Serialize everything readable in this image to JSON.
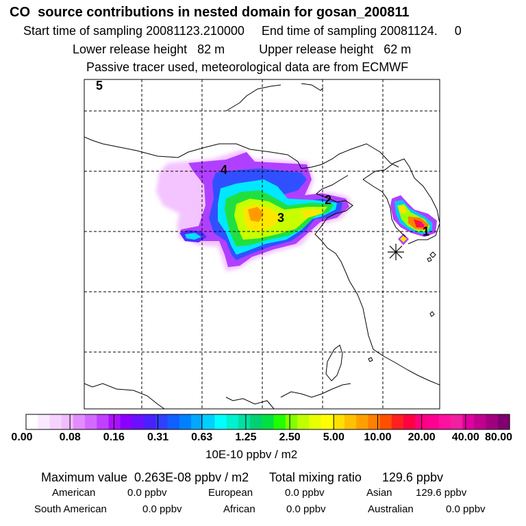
{
  "header": {
    "title": "CO  source contributions in nested domain for gosan_200811",
    "sampling": "Start time of sampling 20081123.210000     End time of sampling 20081124.     0",
    "release": "Lower release height   82 m          Upper release height   62 m",
    "tracer": "Passive tracer used, meteorological data are from ECMWF"
  },
  "map": {
    "corner_label": "5",
    "source_labels": [
      "1",
      "2",
      "3",
      "4"
    ],
    "receptor_marker": "asterisk"
  },
  "colorbar": {
    "tick_labels": [
      "0.00",
      "0.08",
      "0.16",
      "0.31",
      "0.63",
      "1.25",
      "2.50",
      "5.00",
      "10.00",
      "20.00",
      "40.00",
      "80.00"
    ],
    "unit": "10E-10 ppbv / m2",
    "colors": [
      "#ffffff",
      "#fbe9ff",
      "#f5d3ff",
      "#eebcff",
      "#e28cff",
      "#d36aff",
      "#c040ff",
      "#aa10ff",
      "#8a00ff",
      "#6a10ff",
      "#4a20ff",
      "#3040ff",
      "#1060ff",
      "#0080ff",
      "#00a8ff",
      "#00d0ff",
      "#00ffff",
      "#00f0d0",
      "#00e0a0",
      "#00d070",
      "#00e040",
      "#20ff00",
      "#80ff00",
      "#c0ff00",
      "#e8ff00",
      "#ffff00",
      "#ffe000",
      "#ffc000",
      "#ffa000",
      "#ff8000",
      "#ff5000",
      "#ff2020",
      "#ff0040",
      "#ff0080",
      "#ff0090",
      "#ff10a0",
      "#f020a0",
      "#e000a0",
      "#c00090",
      "#a00080",
      "#800070"
    ]
  },
  "summary": {
    "max_value": "Maximum value  0.263E-08 ppbv / m2      Total mixing ratio      129.6 ppbv",
    "row1": {
      "american_label": "American",
      "american_value": "0.0 ppbv",
      "european_label": "European",
      "european_value": "0.0 ppbv",
      "asian_label": "Asian",
      "asian_value": "129.6 ppbv"
    },
    "row2": {
      "south_american_label": "South American",
      "south_american_value": "0.0 ppbv",
      "african_label": "African",
      "african_value": "0.0 ppbv",
      "australian_label": "Australian",
      "australian_value": "0.0 ppbv"
    }
  }
}
